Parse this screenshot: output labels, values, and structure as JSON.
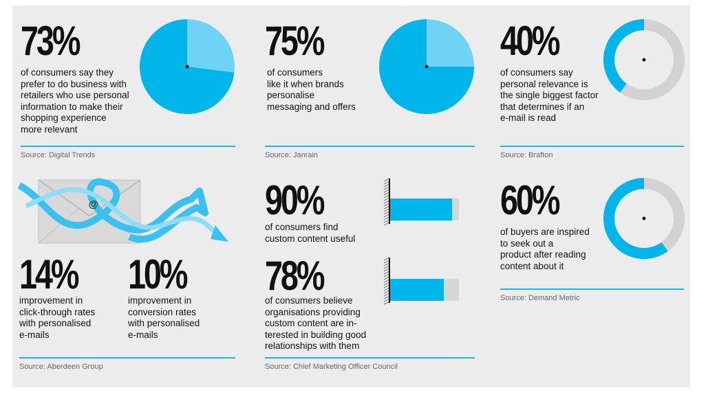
{
  "colors": {
    "blue": "#00b5ea",
    "light_blue": "#6fd3f5",
    "grey": "#d2d2d2",
    "rule": "#1ab4e8"
  },
  "stats": {
    "s73": {
      "value": "73%",
      "text": [
        "of consumers say they",
        "prefer to do business with",
        "retailers who use personal",
        "information to make their",
        "shopping experience",
        "more relevant"
      ],
      "source": "Source: Digital Trends",
      "fraction": 0.73
    },
    "s75": {
      "value": "75%",
      "text": [
        "of consumers",
        "like it when brands",
        "personalise",
        "messaging and offers"
      ],
      "source": "Source: Janrain",
      "fraction": 0.75
    },
    "s40": {
      "value": "40%",
      "text": [
        "of consumers say",
        "personal relevance is",
        "the single biggest factor",
        "that determines if an",
        "e-mail is read"
      ],
      "source": "Source:  Brafton",
      "fraction": 0.4
    },
    "s14": {
      "value": "14%",
      "text": [
        "improvement in",
        "click-through rates",
        "with personalised",
        "e-mails"
      ]
    },
    "s10": {
      "value": "10%",
      "text": [
        "improvement in",
        "conversion rates",
        "with personalised",
        "e-mails"
      ]
    },
    "aberdeen": {
      "source": "Source: Aberdeen Group",
      "envelope_symbol": "@"
    },
    "s90": {
      "value": "90%",
      "text": [
        "of consumers find",
        "custom content useful"
      ],
      "fraction": 0.9
    },
    "s78": {
      "value": "78%",
      "text": [
        "of consumers believe",
        "organisations providing",
        "custom content are in-",
        "terested in building  good",
        "relationships with them"
      ],
      "fraction": 0.78
    },
    "cmo": {
      "source": "Source: Chief Marketing Officer Council"
    },
    "s60": {
      "value": "60%",
      "text": [
        "of buyers are inspired",
        "to seek out a",
        "product after reading",
        "content about it"
      ],
      "source": "Source: Demand Metric",
      "fraction": 0.6
    }
  }
}
